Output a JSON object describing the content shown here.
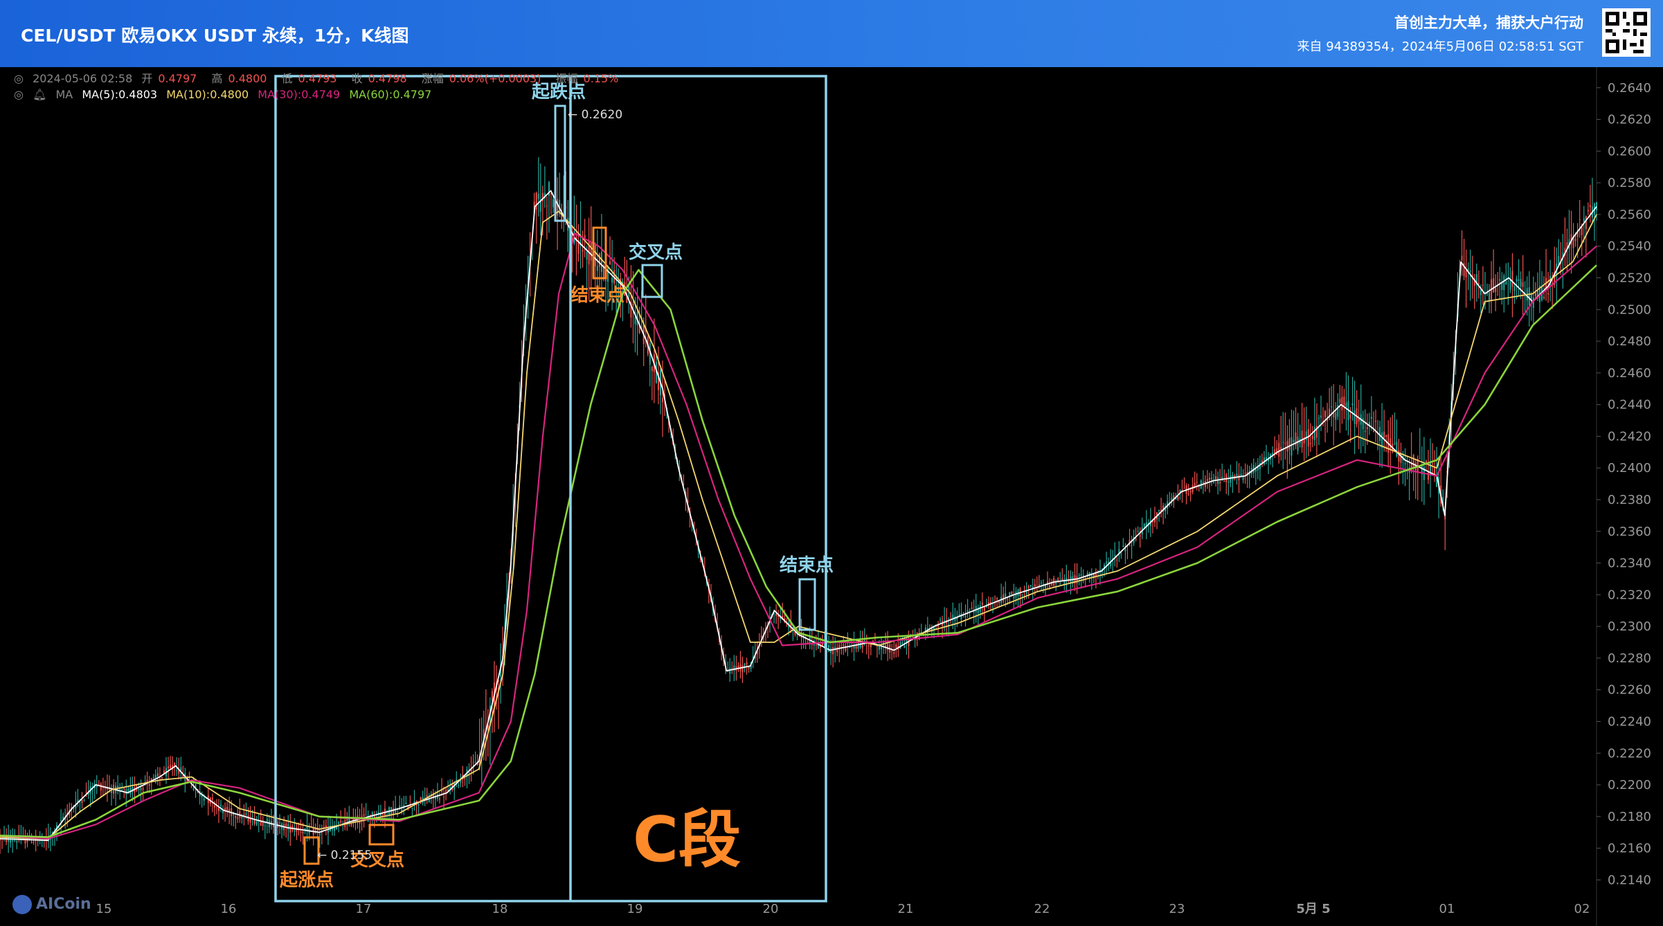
{
  "header": {
    "title": "CEL/USDT 欧易OKX USDT 永续，1分，K线图",
    "slogan": "首创主力大单，捕获大户行动",
    "meta": "来自 94389354，2024年5月06日 02:58:51 SGT"
  },
  "info_bar": {
    "datetime": "2024-05-06 02:58",
    "open_label": "开",
    "open": "0.4797",
    "high_label": "高",
    "high": "0.4800",
    "low_label": "低",
    "low": "0.4793",
    "close_label": "收",
    "close": "0.4798",
    "change_label": "涨幅",
    "change": "0.06%(+0.0003)",
    "amplitude_label": "振幅",
    "amplitude": "0.15%"
  },
  "ma_bar": {
    "label": "MA",
    "ma5": "MA(5):0.4803",
    "ma10": "MA(10):0.4800",
    "ma30": "MA(30):0.4749",
    "ma60": "MA(60):0.4797"
  },
  "logo": "AICoin",
  "colors": {
    "up": "#26a69a",
    "down": "#ef5350",
    "ma5": "#ffffff",
    "ma10": "#f5d76e",
    "ma30": "#d6247f",
    "ma60": "#8bd43c",
    "box": "#8fd3ea",
    "orange": "#ff8a2a"
  },
  "chart_data": {
    "type": "candlestick",
    "title": "CEL/USDT 欧易OKX USDT 永续，1分，K线图",
    "x_ticks": [
      "15",
      "16",
      "17",
      "18",
      "19",
      "20",
      "21",
      "22",
      "23",
      "5月 5",
      "01",
      "02"
    ],
    "y_ticks": [
      "0.2640",
      "0.2620",
      "0.2600",
      "0.2580",
      "0.2560",
      "0.2540",
      "0.2520",
      "0.2500",
      "0.2480",
      "0.2460",
      "0.2440",
      "0.2420",
      "0.2400",
      "0.2380",
      "0.2360",
      "0.2340",
      "0.2320",
      "0.2300",
      "0.2280",
      "0.2260",
      "0.2240",
      "0.2220",
      "0.2200",
      "0.2180",
      "0.2160",
      "0.2140"
    ],
    "ylim": [
      0.2131,
      0.2653
    ],
    "series": [
      {
        "name": "MA(5)",
        "x": [
          0,
          0.03,
          0.045,
          0.06,
          0.08,
          0.1,
          0.11,
          0.125,
          0.14,
          0.16,
          0.18,
          0.2,
          0.22,
          0.25,
          0.28,
          0.3,
          0.315,
          0.32,
          0.328,
          0.335,
          0.345,
          0.36,
          0.375,
          0.39,
          0.405,
          0.415,
          0.425,
          0.435,
          0.445,
          0.455,
          0.47,
          0.485,
          0.5,
          0.52,
          0.545,
          0.56,
          0.585,
          0.61,
          0.635,
          0.66,
          0.675,
          0.69,
          0.705,
          0.72,
          0.74,
          0.76,
          0.78,
          0.8,
          0.82,
          0.84,
          0.86,
          0.88,
          0.9,
          0.905,
          0.915,
          0.93,
          0.945,
          0.96,
          0.97,
          0.985,
          1.0
        ],
        "y": [
          0.2166,
          0.2165,
          0.2185,
          0.22,
          0.2195,
          0.2205,
          0.2212,
          0.2195,
          0.2184,
          0.2178,
          0.2173,
          0.217,
          0.2177,
          0.2185,
          0.2195,
          0.2215,
          0.228,
          0.234,
          0.248,
          0.2565,
          0.2575,
          0.2545,
          0.253,
          0.2515,
          0.248,
          0.245,
          0.24,
          0.236,
          0.232,
          0.2272,
          0.2275,
          0.231,
          0.2295,
          0.2285,
          0.229,
          0.2285,
          0.23,
          0.231,
          0.232,
          0.2328,
          0.233,
          0.2335,
          0.235,
          0.2365,
          0.2385,
          0.2392,
          0.2395,
          0.241,
          0.242,
          0.244,
          0.2425,
          0.2405,
          0.2395,
          0.237,
          0.253,
          0.251,
          0.252,
          0.2505,
          0.2515,
          0.2545,
          0.2565
        ]
      },
      {
        "name": "MA(10)",
        "x": [
          0,
          0.03,
          0.05,
          0.07,
          0.1,
          0.12,
          0.15,
          0.2,
          0.25,
          0.3,
          0.315,
          0.322,
          0.33,
          0.34,
          0.35,
          0.365,
          0.38,
          0.395,
          0.41,
          0.425,
          0.44,
          0.455,
          0.47,
          0.485,
          0.5,
          0.55,
          0.6,
          0.65,
          0.7,
          0.75,
          0.8,
          0.85,
          0.9,
          0.93,
          0.96,
          0.985,
          1.0
        ],
        "y": [
          0.2167,
          0.2166,
          0.2183,
          0.2197,
          0.2203,
          0.2205,
          0.2185,
          0.2172,
          0.2182,
          0.221,
          0.227,
          0.234,
          0.246,
          0.2555,
          0.2562,
          0.2545,
          0.2528,
          0.251,
          0.2475,
          0.243,
          0.238,
          0.2335,
          0.229,
          0.229,
          0.23,
          0.2288,
          0.2302,
          0.2322,
          0.2335,
          0.236,
          0.2395,
          0.242,
          0.24,
          0.2505,
          0.251,
          0.253,
          0.256
        ]
      },
      {
        "name": "MA(30)",
        "x": [
          0,
          0.03,
          0.06,
          0.09,
          0.12,
          0.15,
          0.2,
          0.25,
          0.3,
          0.32,
          0.33,
          0.34,
          0.35,
          0.36,
          0.375,
          0.39,
          0.41,
          0.43,
          0.45,
          0.47,
          0.49,
          0.52,
          0.55,
          0.6,
          0.65,
          0.7,
          0.75,
          0.8,
          0.85,
          0.9,
          0.93,
          0.96,
          1.0
        ],
        "y": [
          0.2168,
          0.2166,
          0.2175,
          0.219,
          0.2203,
          0.2198,
          0.218,
          0.2177,
          0.2195,
          0.224,
          0.231,
          0.242,
          0.251,
          0.2548,
          0.254,
          0.2525,
          0.249,
          0.244,
          0.238,
          0.233,
          0.2288,
          0.229,
          0.229,
          0.2295,
          0.2318,
          0.233,
          0.235,
          0.2385,
          0.2405,
          0.2395,
          0.246,
          0.2505,
          0.254
        ]
      },
      {
        "name": "MA(60)",
        "x": [
          0,
          0.03,
          0.06,
          0.09,
          0.12,
          0.15,
          0.2,
          0.25,
          0.3,
          0.32,
          0.335,
          0.35,
          0.37,
          0.39,
          0.4,
          0.42,
          0.44,
          0.46,
          0.48,
          0.5,
          0.52,
          0.55,
          0.6,
          0.65,
          0.7,
          0.75,
          0.8,
          0.85,
          0.9,
          0.93,
          0.96,
          1.0
        ],
        "y": [
          0.2168,
          0.2167,
          0.2178,
          0.2195,
          0.2202,
          0.2195,
          0.218,
          0.2178,
          0.219,
          0.2215,
          0.227,
          0.235,
          0.244,
          0.251,
          0.2525,
          0.25,
          0.243,
          0.237,
          0.2325,
          0.2296,
          0.229,
          0.2293,
          0.2296,
          0.2312,
          0.2322,
          0.234,
          0.2366,
          0.2388,
          0.2405,
          0.244,
          0.249,
          0.2528
        ]
      }
    ],
    "annotations": [
      {
        "text": "起跌点",
        "value": "0.2620",
        "color": "box"
      },
      {
        "text": "交叉点",
        "color": "box"
      },
      {
        "text": "结束点",
        "color": "orange"
      },
      {
        "text": "结束点",
        "color": "box"
      },
      {
        "text": "起涨点",
        "value": "0.2155",
        "color": "orange"
      },
      {
        "text": "交叉点",
        "color": "orange"
      },
      {
        "text": "C段",
        "color": "orange"
      }
    ]
  }
}
